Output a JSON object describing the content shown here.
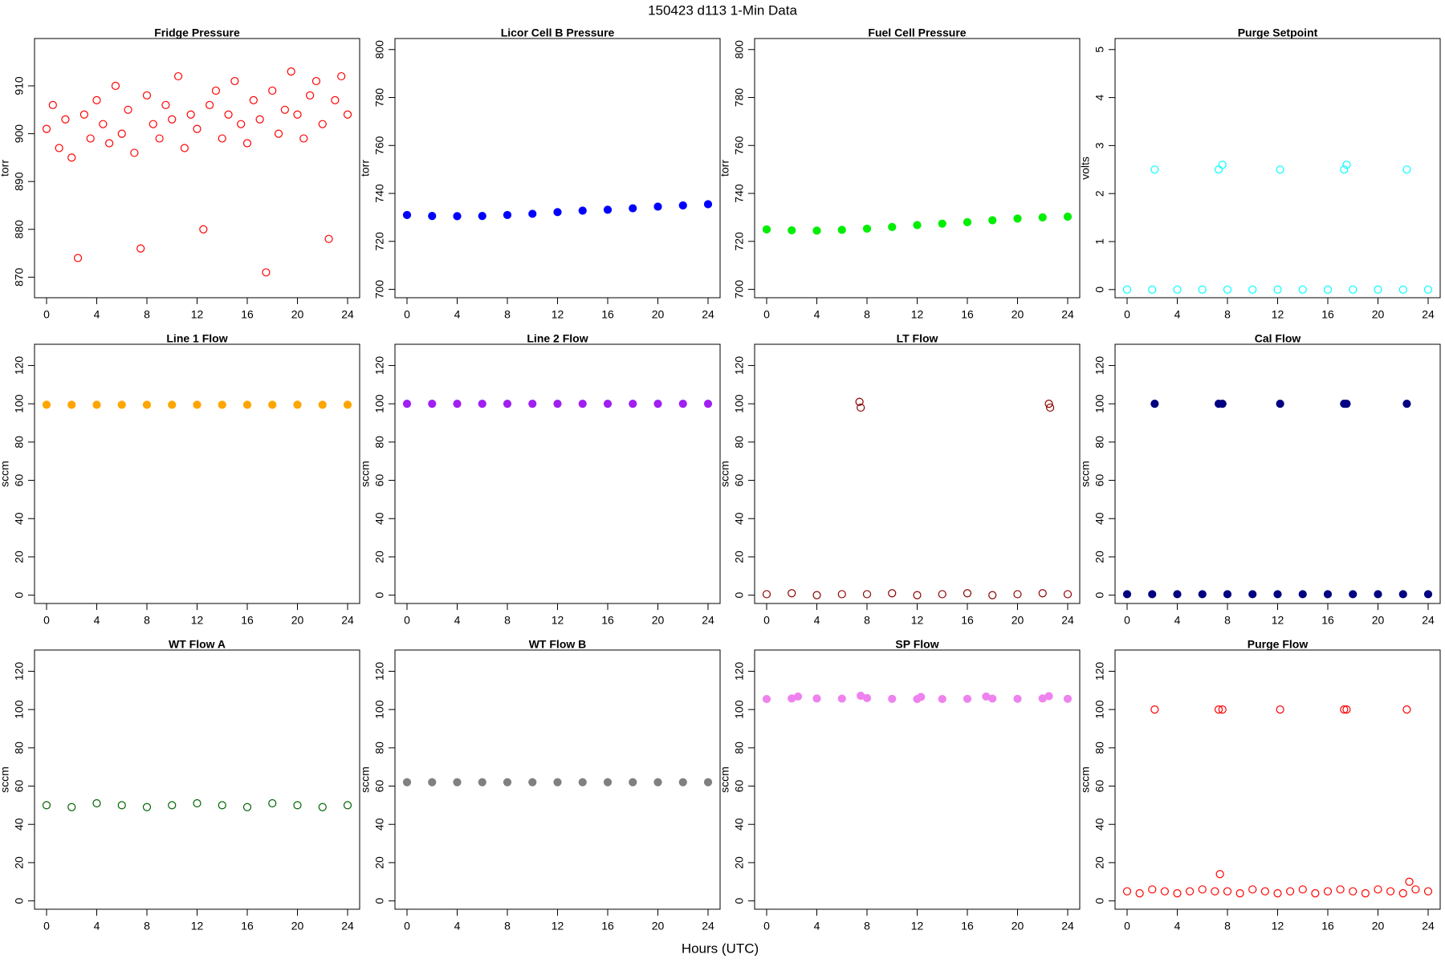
{
  "title": "150423   d113   1-Min Data",
  "x_label": "Hours (UTC)",
  "chart_data": [
    {
      "type": "scatter",
      "title": "Fridge Pressure",
      "y_label": "torr",
      "color": "#ff0000",
      "marker": "open",
      "xlim": [
        -0.96,
        24.96
      ],
      "xticks": [
        0,
        4,
        8,
        12,
        16,
        20,
        24
      ],
      "ylim": [
        865.7,
        919.9
      ],
      "yticks": [
        870,
        880,
        890,
        900,
        910
      ],
      "x": [
        0,
        0.5,
        1,
        1.5,
        2,
        2.5,
        3,
        3.5,
        4,
        4.5,
        5,
        5.5,
        6,
        6.5,
        7,
        7.5,
        8,
        8.5,
        9,
        9.5,
        10,
        10.5,
        11,
        11.5,
        12,
        12.5,
        13,
        13.5,
        14,
        14.5,
        15,
        15.5,
        16,
        16.5,
        17,
        17.5,
        18,
        18.5,
        19,
        19.5,
        20,
        20.5,
        21,
        21.5,
        22,
        22.5,
        23,
        23.5,
        24
      ],
      "values": [
        901,
        906,
        897,
        903,
        895,
        874,
        904,
        899,
        907,
        902,
        898,
        910,
        900,
        905,
        896,
        876,
        908,
        902,
        899,
        906,
        903,
        912,
        897,
        904,
        901,
        880,
        906,
        909,
        899,
        904,
        911,
        902,
        898,
        907,
        903,
        871,
        909,
        900,
        905,
        913,
        904,
        899,
        908,
        911,
        902,
        878,
        907,
        912,
        904
      ]
    },
    {
      "type": "scatter",
      "title": "Licor Cell B Pressure",
      "y_label": "torr",
      "color": "#0000ff",
      "marker": "filled",
      "xlim": [
        -0.96,
        24.96
      ],
      "xticks": [
        0,
        4,
        8,
        12,
        16,
        20,
        24
      ],
      "ylim": [
        696.5,
        804.6
      ],
      "yticks": [
        700,
        720,
        740,
        760,
        780,
        800
      ],
      "x": [
        0,
        2,
        4,
        6,
        8,
        10,
        12,
        14,
        16,
        18,
        20,
        22,
        24
      ],
      "values": [
        731,
        730.6,
        730.5,
        730.6,
        731,
        731.5,
        732.2,
        732.8,
        733.2,
        733.8,
        734.5,
        735,
        735.5
      ]
    },
    {
      "type": "scatter",
      "title": "Fuel Cell Pressure",
      "y_label": "torr",
      "color": "#00ee00",
      "marker": "filled",
      "xlim": [
        -0.96,
        24.96
      ],
      "xticks": [
        0,
        4,
        8,
        12,
        16,
        20,
        24
      ],
      "ylim": [
        696.5,
        804.6
      ],
      "yticks": [
        700,
        720,
        740,
        760,
        780,
        800
      ],
      "x": [
        0,
        2,
        4,
        6,
        8,
        10,
        12,
        14,
        16,
        18,
        20,
        22,
        24
      ],
      "values": [
        725,
        724.6,
        724.5,
        724.8,
        725.3,
        726,
        726.8,
        727.4,
        728,
        728.8,
        729.5,
        730,
        730.3
      ]
    },
    {
      "type": "scatter",
      "title": "Purge Setpoint",
      "y_label": "volts",
      "color": "#00ffff",
      "marker": "open",
      "xlim": [
        -0.96,
        24.96
      ],
      "xticks": [
        0,
        4,
        8,
        12,
        16,
        20,
        24
      ],
      "ylim": [
        -0.17,
        5.23
      ],
      "yticks": [
        0,
        1,
        2,
        3,
        4,
        5
      ],
      "x": [
        0,
        2,
        2.2,
        4,
        6,
        7.3,
        7.6,
        8,
        10,
        12,
        12.2,
        14,
        16,
        17.3,
        17.5,
        18,
        20,
        22,
        22.3,
        24
      ],
      "values": [
        0,
        0,
        2.5,
        0,
        0,
        2.5,
        2.6,
        0,
        0,
        0,
        2.5,
        0,
        0,
        2.5,
        2.6,
        0,
        0,
        0,
        2.5,
        0
      ]
    },
    {
      "type": "scatter",
      "title": "Line 1 Flow",
      "y_label": "sccm",
      "color": "#ffa500",
      "marker": "filled",
      "xlim": [
        -0.96,
        24.96
      ],
      "xticks": [
        0,
        4,
        8,
        12,
        16,
        20,
        24
      ],
      "ylim": [
        -4.35,
        131.1
      ],
      "yticks": [
        0,
        20,
        40,
        60,
        80,
        100,
        120
      ],
      "x": [
        0,
        2,
        4,
        6,
        8,
        10,
        12,
        14,
        16,
        18,
        20,
        22,
        24
      ],
      "values": [
        99.5,
        99.5,
        99.5,
        99.5,
        99.5,
        99.5,
        99.5,
        99.5,
        99.5,
        99.5,
        99.5,
        99.5,
        99.5
      ]
    },
    {
      "type": "scatter",
      "title": "Line 2 Flow",
      "y_label": "sccm",
      "color": "#a020f0",
      "marker": "filled",
      "xlim": [
        -0.96,
        24.96
      ],
      "xticks": [
        0,
        4,
        8,
        12,
        16,
        20,
        24
      ],
      "ylim": [
        -4.35,
        131.1
      ],
      "yticks": [
        0,
        20,
        40,
        60,
        80,
        100,
        120
      ],
      "x": [
        0,
        2,
        4,
        6,
        8,
        10,
        12,
        14,
        16,
        18,
        20,
        22,
        24
      ],
      "values": [
        100,
        100,
        100,
        100,
        100,
        100,
        100,
        100,
        100,
        100,
        100,
        100,
        100
      ]
    },
    {
      "type": "scatter",
      "title": "LT Flow",
      "y_label": "sccm",
      "color": "#8b0000",
      "marker": "open",
      "xlim": [
        -0.96,
        24.96
      ],
      "xticks": [
        0,
        4,
        8,
        12,
        16,
        20,
        24
      ],
      "ylim": [
        -4.35,
        131.1
      ],
      "yticks": [
        0,
        20,
        40,
        60,
        80,
        100,
        120
      ],
      "x": [
        0,
        2,
        4,
        6,
        7.4,
        7.5,
        8,
        10,
        12,
        14,
        16,
        18,
        20,
        22,
        22.5,
        22.6,
        24
      ],
      "values": [
        0.5,
        1,
        0,
        0.5,
        101,
        98,
        0.5,
        1,
        0,
        0.5,
        1,
        0,
        0.5,
        1,
        100,
        98,
        0.5
      ]
    },
    {
      "type": "scatter",
      "title": "Cal Flow",
      "y_label": "sccm",
      "color": "#000080",
      "marker": "filled",
      "xlim": [
        -0.96,
        24.96
      ],
      "xticks": [
        0,
        4,
        8,
        12,
        16,
        20,
        24
      ],
      "ylim": [
        -4.35,
        131.1
      ],
      "yticks": [
        0,
        20,
        40,
        60,
        80,
        100,
        120
      ],
      "x": [
        0,
        2,
        2.2,
        4,
        6,
        7.3,
        7.6,
        8,
        10,
        12,
        12.2,
        14,
        16,
        17.3,
        17.5,
        18,
        20,
        22,
        22.3,
        24
      ],
      "values": [
        0.5,
        0.5,
        100,
        0.5,
        0.5,
        100,
        100,
        0.5,
        0.5,
        0.5,
        100,
        0.5,
        0.5,
        100,
        100,
        0.5,
        0.5,
        0.5,
        100,
        0.5
      ]
    },
    {
      "type": "scatter",
      "title": "WT Flow A",
      "y_label": "sccm",
      "color": "#006400",
      "marker": "open",
      "xlim": [
        -0.96,
        24.96
      ],
      "xticks": [
        0,
        4,
        8,
        12,
        16,
        20,
        24
      ],
      "ylim": [
        -4.35,
        131.1
      ],
      "yticks": [
        0,
        20,
        40,
        60,
        80,
        100,
        120
      ],
      "x": [
        0,
        2,
        4,
        6,
        8,
        10,
        12,
        14,
        16,
        18,
        20,
        22,
        24
      ],
      "values": [
        50,
        49,
        51,
        50,
        49,
        50,
        51,
        50,
        49,
        51,
        50,
        49,
        50
      ]
    },
    {
      "type": "scatter",
      "title": "WT Flow B",
      "y_label": "sccm",
      "color": "#808080",
      "marker": "filled",
      "xlim": [
        -0.96,
        24.96
      ],
      "xticks": [
        0,
        4,
        8,
        12,
        16,
        20,
        24
      ],
      "ylim": [
        -4.35,
        131.1
      ],
      "yticks": [
        0,
        20,
        40,
        60,
        80,
        100,
        120
      ],
      "x": [
        0,
        2,
        4,
        6,
        8,
        10,
        12,
        14,
        16,
        18,
        20,
        22,
        24
      ],
      "values": [
        62,
        62,
        62,
        62,
        62,
        62,
        62,
        62,
        62,
        62,
        62,
        62,
        62
      ]
    },
    {
      "type": "scatter",
      "title": "SP Flow",
      "y_label": "sccm",
      "color": "#ee82ee",
      "marker": "filled",
      "xlim": [
        -0.96,
        24.96
      ],
      "xticks": [
        0,
        4,
        8,
        12,
        16,
        20,
        24
      ],
      "ylim": [
        -4.35,
        131.1
      ],
      "yticks": [
        0,
        20,
        40,
        60,
        80,
        100,
        120
      ],
      "x": [
        0,
        2,
        2.5,
        4,
        6,
        7.5,
        8,
        10,
        12,
        12.3,
        14,
        16,
        17.5,
        18,
        20,
        22,
        22.5,
        24
      ],
      "values": [
        105.5,
        105.8,
        106.8,
        105.8,
        105.7,
        107.2,
        106,
        105.6,
        105.5,
        106.6,
        105.5,
        105.6,
        106.8,
        105.7,
        105.6,
        105.8,
        107,
        105.6
      ]
    },
    {
      "type": "scatter",
      "title": "Purge Flow",
      "y_label": "sccm",
      "color": "#ff0000",
      "marker": "open",
      "xlim": [
        -0.96,
        24.96
      ],
      "xticks": [
        0,
        4,
        8,
        12,
        16,
        20,
        24
      ],
      "ylim": [
        -4.35,
        131.1
      ],
      "yticks": [
        0,
        20,
        40,
        60,
        80,
        100,
        120
      ],
      "x": [
        0,
        1,
        2,
        2.2,
        3,
        4,
        5,
        6,
        7,
        7.3,
        7.4,
        7.6,
        8,
        9,
        10,
        11,
        12,
        12.2,
        13,
        14,
        15,
        16,
        17,
        17.3,
        17.5,
        18,
        19,
        20,
        21,
        22,
        22.3,
        22.5,
        23,
        24
      ],
      "values": [
        5,
        4,
        6,
        100,
        5,
        4,
        5,
        6,
        5,
        100,
        14,
        100,
        5,
        4,
        6,
        5,
        4,
        100,
        5,
        6,
        4,
        5,
        6,
        100,
        100,
        5,
        4,
        6,
        5,
        4,
        100,
        10,
        6,
        5
      ]
    }
  ]
}
